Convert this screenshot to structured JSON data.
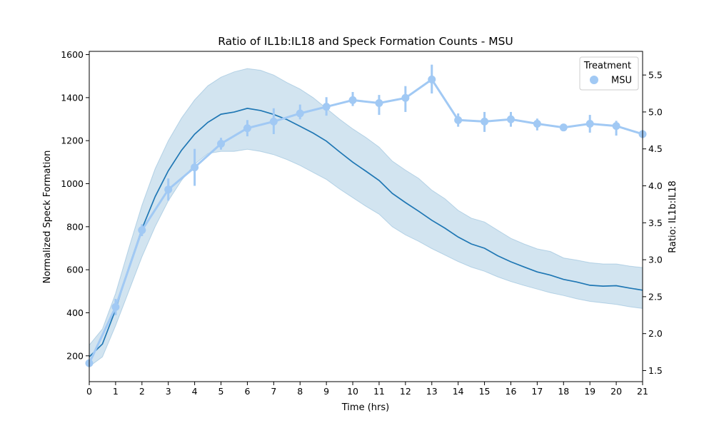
{
  "chart_data": {
    "type": "line",
    "title": "Ratio of IL1b:IL18 and Speck Formation Counts - MSU",
    "xlabel": "Time (hrs)",
    "ylabel": "Normalized Speck Formation",
    "ylabel_right": "Ratio: IL1b:IL18",
    "xlim": [
      0,
      21
    ],
    "ylim": [
      80,
      1615
    ],
    "ylim_right": [
      1.35,
      5.82
    ],
    "x_ticks": [
      0,
      1,
      2,
      3,
      4,
      5,
      6,
      7,
      8,
      9,
      10,
      11,
      12,
      13,
      14,
      15,
      16,
      17,
      18,
      19,
      20,
      21
    ],
    "y_ticks": [
      200,
      400,
      600,
      800,
      1000,
      1200,
      1400,
      1600
    ],
    "y_ticks_right": [
      1.5,
      2.0,
      2.5,
      3.0,
      3.5,
      4.0,
      4.5,
      5.0,
      5.5
    ],
    "grid": false,
    "legend": {
      "title": "Treatment",
      "placement": "top-right",
      "entries": [
        "MSU"
      ]
    },
    "series": [
      {
        "axis": "left",
        "kind": "line-with-band",
        "color": "#1f77b4",
        "band_color": "#1f77b4",
        "x": [
          0,
          0.5,
          1,
          1.5,
          2,
          2.5,
          3,
          3.5,
          4,
          4.5,
          5,
          5.5,
          6,
          6.5,
          7,
          7.5,
          8,
          8.5,
          9,
          9.5,
          10,
          10.5,
          11,
          11.5,
          12,
          12.5,
          13,
          13.5,
          14,
          14.5,
          15,
          15.5,
          16,
          16.5,
          17,
          17.5,
          18,
          18.5,
          19,
          19.5,
          20,
          20.5,
          21
        ],
        "values": [
          195,
          255,
          415,
          610,
          790,
          940,
          1060,
          1155,
          1230,
          1285,
          1323,
          1333,
          1350,
          1340,
          1322,
          1298,
          1267,
          1235,
          1198,
          1148,
          1100,
          1058,
          1015,
          955,
          912,
          872,
          830,
          793,
          752,
          720,
          700,
          665,
          637,
          613,
          590,
          575,
          555,
          543,
          528,
          524,
          526,
          515,
          505
        ],
        "lower": [
          150,
          195,
          340,
          500,
          660,
          800,
          920,
          1015,
          1090,
          1140,
          1150,
          1150,
          1160,
          1150,
          1135,
          1112,
          1085,
          1052,
          1020,
          975,
          935,
          895,
          858,
          800,
          762,
          732,
          698,
          668,
          638,
          612,
          593,
          567,
          545,
          527,
          510,
          493,
          480,
          465,
          453,
          446,
          439,
          428,
          420
        ],
        "upper": [
          250,
          325,
          490,
          700,
          900,
          1070,
          1200,
          1305,
          1390,
          1455,
          1495,
          1520,
          1535,
          1527,
          1505,
          1470,
          1440,
          1400,
          1350,
          1300,
          1255,
          1215,
          1170,
          1105,
          1063,
          1025,
          970,
          930,
          876,
          840,
          822,
          784,
          746,
          720,
          697,
          685,
          655,
          645,
          633,
          627,
          627,
          617,
          610
        ]
      },
      {
        "axis": "right",
        "kind": "point-with-errorbars",
        "color": "#a1c9f4",
        "name": "MSU",
        "x": [
          0,
          1,
          2,
          3,
          4,
          5,
          6,
          7,
          8,
          9,
          10,
          11,
          12,
          13,
          14,
          15,
          16,
          17,
          18,
          19,
          20,
          21
        ],
        "values": [
          1.6,
          2.36,
          3.4,
          3.95,
          4.25,
          4.57,
          4.78,
          4.87,
          4.98,
          5.07,
          5.16,
          5.12,
          5.19,
          5.44,
          4.89,
          4.87,
          4.9,
          4.84,
          4.79,
          4.84,
          4.81,
          4.7
        ],
        "error_low": [
          1.55,
          2.25,
          3.32,
          3.8,
          4.0,
          4.49,
          4.67,
          4.7,
          4.9,
          4.95,
          5.08,
          4.96,
          5.0,
          5.25,
          4.8,
          4.73,
          4.8,
          4.75,
          4.74,
          4.72,
          4.68,
          4.65
        ],
        "error_high": [
          1.65,
          2.47,
          3.48,
          4.1,
          4.5,
          4.65,
          4.89,
          5.05,
          5.1,
          5.2,
          5.27,
          5.23,
          5.35,
          5.64,
          4.98,
          5.0,
          5.0,
          4.91,
          4.84,
          4.96,
          4.88,
          4.75
        ]
      }
    ]
  }
}
